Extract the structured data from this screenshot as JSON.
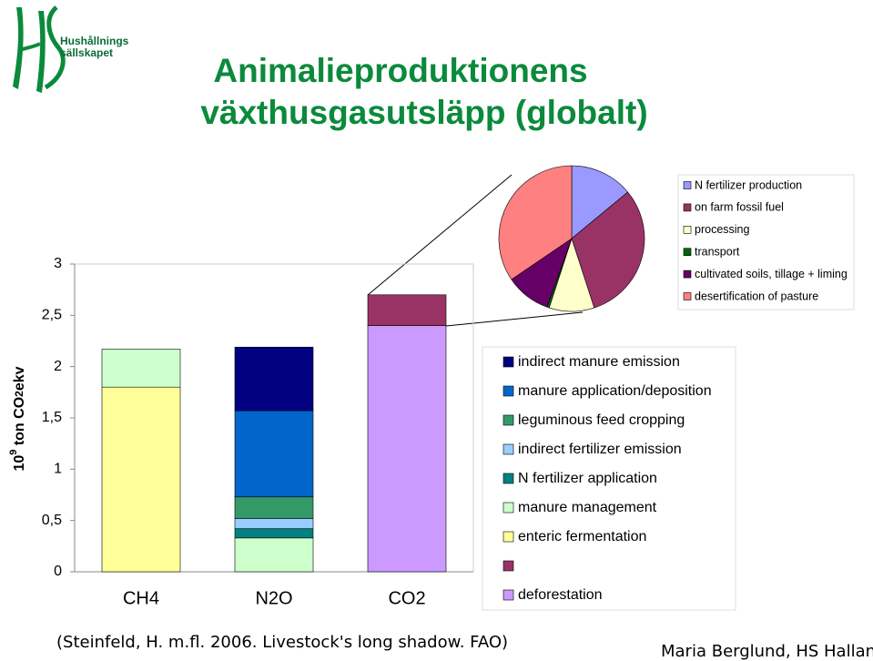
{
  "slide": {
    "logo": [
      "Hushållnings",
      "sällskapet"
    ],
    "title": [
      "Animalieproduktionens",
      "växthusgasutsläpp (globalt)"
    ],
    "source": "(Steinfeld, H. m.fl. 2006. Livestock's long shadow. FAO)",
    "author": "Maria Berglund, HS Halland"
  },
  "chart_data": [
    {
      "type": "bar",
      "stacked": true,
      "y_label": {
        "base": "10",
        "exp": "9",
        "unit": " ton CO",
        "sub": "2",
        "suffix": "ekv"
      },
      "categories": [
        "CH4",
        "N2O",
        "CO2"
      ],
      "ylim": [
        0,
        3
      ],
      "yticks": [
        0,
        {
          "value": 0.5,
          "label": "0,5"
        },
        1,
        {
          "value": 1.5,
          "label": "1,5"
        },
        2,
        {
          "value": 2.5,
          "label": "2,5"
        },
        3
      ],
      "series": [
        {
          "name": "indirect manure emission",
          "color": "#000080",
          "values": [
            null,
            0.62,
            null
          ]
        },
        {
          "name": "manure application/deposition",
          "color": "#0066cc",
          "values": [
            null,
            0.84,
            null
          ]
        },
        {
          "name": "leguminous feed cropping",
          "color": "#339966",
          "values": [
            null,
            0.21,
            null
          ]
        },
        {
          "name": "indirect fertilizer emission",
          "color": "#99ccff",
          "values": [
            null,
            0.1,
            null
          ]
        },
        {
          "name": "N fertilizer application",
          "color": "#008080",
          "values": [
            null,
            0.09,
            null
          ]
        },
        {
          "name": "manure management",
          "color": "#ccffcc",
          "values": [
            0.37,
            0.33,
            null
          ]
        },
        {
          "name": "enteric fermentation",
          "color": "#ffff99",
          "values": [
            1.8,
            null,
            null
          ]
        },
        {
          "color": "#993366",
          "values": [
            null,
            null,
            0.3
          ]
        },
        {
          "name": "deforestation",
          "color": "#cc99ff",
          "values": [
            null,
            null,
            2.4
          ]
        }
      ]
    },
    {
      "type": "pie",
      "categories": [
        "N fertilizer production",
        "on farm fossil fuel",
        "processing",
        "transport",
        "cultivated soils, tillage + liming",
        "desertification of pasture"
      ],
      "values": [
        14,
        31,
        10,
        0.5,
        10,
        34.5
      ],
      "colors": [
        "#9999ff",
        "#993366",
        "#ffffcc",
        "#006600",
        "#660066",
        "#ff8080"
      ]
    }
  ]
}
